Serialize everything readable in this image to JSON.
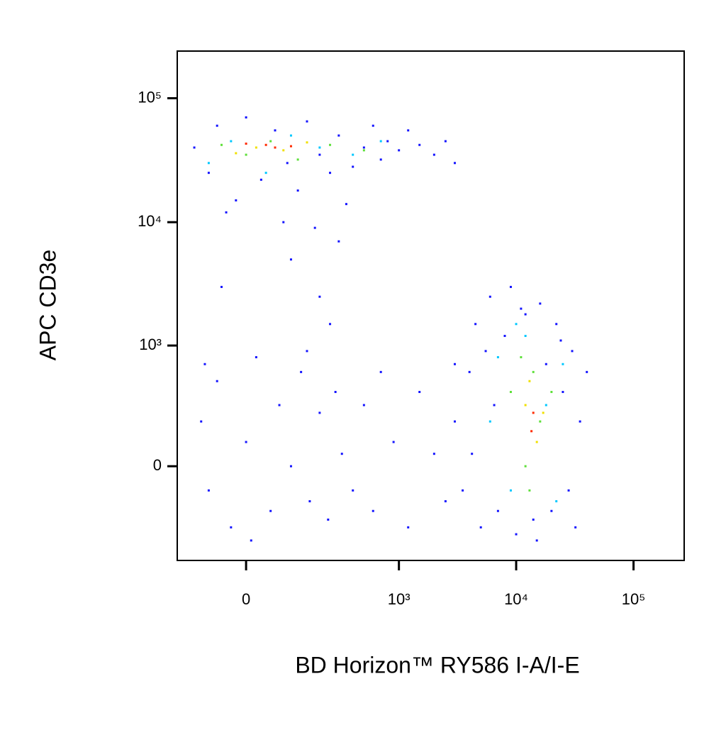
{
  "chart_data": {
    "type": "scatter",
    "x_label": "BD Horizon™ RY586 I-A/I-E",
    "y_label": "APC CD3e",
    "xscale": "biexponential",
    "yscale": "biexponential",
    "xlim": [
      -180,
      270000
    ],
    "ylim": [
      -600,
      240000
    ],
    "xticks": [
      0,
      {
        "value": 1000,
        "label": "10³"
      },
      {
        "value": 10000,
        "label": "10⁴"
      },
      {
        "value": 100000,
        "label": "10⁵"
      }
    ],
    "yticks": [
      0,
      {
        "value": 1000,
        "label": "10³"
      },
      {
        "value": 10000,
        "label": "10⁴"
      },
      {
        "value": 100000,
        "label": "10⁵"
      }
    ],
    "series": [
      {
        "color": "#1414ff",
        "x": [
          -120,
          -80,
          -60,
          -20,
          0,
          30,
          60,
          90,
          120,
          150,
          200,
          250,
          300,
          400,
          500,
          600,
          700,
          800,
          1000,
          1200,
          1500,
          2000,
          2500,
          3000,
          -40,
          80,
          180,
          350,
          100,
          -50,
          200,
          300,
          250,
          -100,
          -80,
          -60,
          -30,
          0,
          20,
          50,
          70,
          100,
          130,
          160,
          200,
          240,
          280,
          320,
          -90,
          10,
          150,
          400,
          500,
          600,
          700,
          900,
          1200,
          1500,
          2000,
          2500,
          3000,
          3000,
          3500,
          4000,
          4500,
          5000,
          5500,
          6000,
          7000,
          8000,
          9000,
          10000,
          12000,
          14000,
          16000,
          18000,
          20000,
          22000,
          25000,
          28000,
          30000,
          35000,
          40000,
          6500,
          11000,
          15000,
          24000,
          4200,
          32000
        ],
        "y": [
          40000,
          25000,
          60000,
          15000,
          70000,
          22000,
          55000,
          30000,
          18000,
          65000,
          35000,
          25000,
          50000,
          28000,
          40000,
          60000,
          32000,
          45000,
          38000,
          55000,
          42000,
          35000,
          45000,
          30000,
          12000,
          10000,
          9000,
          14000,
          5000,
          3000,
          2500,
          7000,
          1500,
          200,
          -100,
          500,
          -300,
          100,
          800,
          -200,
          300,
          0,
          600,
          -150,
          250,
          -250,
          400,
          50,
          700,
          -400,
          900,
          -100,
          300,
          -200,
          600,
          100,
          -300,
          400,
          50,
          -150,
          700,
          200,
          -100,
          600,
          1500,
          -300,
          900,
          2500,
          -200,
          1200,
          3000,
          -350,
          1800,
          -250,
          2200,
          700,
          -200,
          1500,
          400,
          -100,
          900,
          200,
          600,
          300,
          2000,
          -400,
          1100,
          50,
          -300
        ]
      },
      {
        "color": "#00c8ff",
        "x": [
          -30,
          40,
          100,
          200,
          400,
          700,
          -80,
          7000,
          9000,
          12000,
          18000,
          22000,
          6000,
          25000,
          10000
        ],
        "y": [
          45000,
          25000,
          50000,
          40000,
          35000,
          45000,
          30000,
          800,
          -100,
          1200,
          300,
          -150,
          200,
          700,
          1500
        ]
      },
      {
        "color": "#5ee03a",
        "x": [
          0,
          50,
          120,
          250,
          500,
          -50,
          9000,
          12000,
          14000,
          16000,
          11000,
          20000,
          13000
        ],
        "y": [
          35000,
          45000,
          32000,
          42000,
          38000,
          42000,
          400,
          0,
          600,
          200,
          800,
          400,
          -100
        ]
      },
      {
        "color": "#f0e000",
        "x": [
          20,
          80,
          150,
          -20,
          12000,
          15000,
          13000,
          17000
        ],
        "y": [
          40000,
          38000,
          44000,
          36000,
          300,
          100,
          500,
          250
        ]
      },
      {
        "color": "#ff2a00",
        "x": [
          40,
          60,
          100,
          0,
          14000,
          13500
        ],
        "y": [
          42000,
          40000,
          41000,
          43000,
          250,
          150
        ]
      }
    ]
  }
}
